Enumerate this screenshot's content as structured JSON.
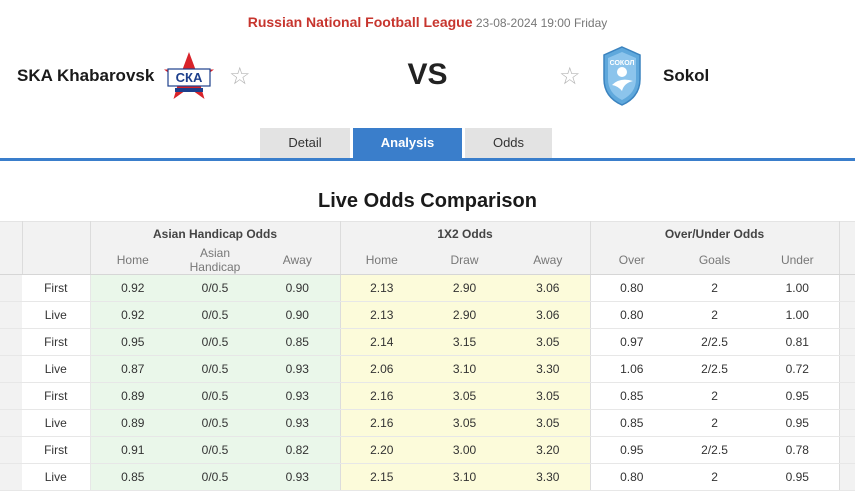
{
  "header": {
    "league": "Russian National Football League",
    "datetime": "23-08-2024 19:00 Friday",
    "home_team": "SKA Khabarovsk",
    "away_team": "Sokol",
    "vs": "VS",
    "home_logo_text": "СКА",
    "away_logo_text": "СОКОЛ"
  },
  "tabs": [
    {
      "label": "Detail",
      "active": false
    },
    {
      "label": "Analysis",
      "active": true
    },
    {
      "label": "Odds",
      "active": false
    }
  ],
  "section_title": "Live Odds Comparison",
  "table": {
    "groups": [
      "Asian Handicap Odds",
      "1X2 Odds",
      "Over/Under Odds"
    ],
    "subheaders": [
      "Home",
      "Asian Handicap",
      "Away",
      "Home",
      "Draw",
      "Away",
      "Over",
      "Goals",
      "Under"
    ],
    "rows": [
      {
        "label": "First",
        "ah": [
          "0.92",
          "0/0.5",
          "0.90"
        ],
        "x12": [
          "2.13",
          "2.90",
          "3.06"
        ],
        "ou": [
          "0.80",
          "2",
          "1.00"
        ]
      },
      {
        "label": "Live",
        "ah": [
          "0.92",
          "0/0.5",
          "0.90"
        ],
        "x12": [
          "2.13",
          "2.90",
          "3.06"
        ],
        "ou": [
          "0.80",
          "2",
          "1.00"
        ]
      },
      {
        "label": "First",
        "ah": [
          "0.95",
          "0/0.5",
          "0.85"
        ],
        "x12": [
          "2.14",
          "3.15",
          "3.05"
        ],
        "ou": [
          "0.97",
          "2/2.5",
          "0.81"
        ]
      },
      {
        "label": "Live",
        "ah": [
          "0.87",
          "0/0.5",
          "0.93"
        ],
        "x12": [
          "2.06",
          "3.10",
          "3.30"
        ],
        "ou": [
          "1.06",
          "2/2.5",
          "0.72"
        ]
      },
      {
        "label": "First",
        "ah": [
          "0.89",
          "0/0.5",
          "0.93"
        ],
        "x12": [
          "2.16",
          "3.05",
          "3.05"
        ],
        "ou": [
          "0.85",
          "2",
          "0.95"
        ]
      },
      {
        "label": "Live",
        "ah": [
          "0.89",
          "0/0.5",
          "0.93"
        ],
        "x12": [
          "2.16",
          "3.05",
          "3.05"
        ],
        "ou": [
          "0.85",
          "2",
          "0.95"
        ]
      },
      {
        "label": "First",
        "ah": [
          "0.91",
          "0/0.5",
          "0.82"
        ],
        "x12": [
          "2.20",
          "3.00",
          "3.20"
        ],
        "ou": [
          "0.95",
          "2/2.5",
          "0.78"
        ]
      },
      {
        "label": "Live",
        "ah": [
          "0.85",
          "0/0.5",
          "0.93"
        ],
        "x12": [
          "2.15",
          "3.10",
          "3.30"
        ],
        "ou": [
          "0.80",
          "2",
          "0.95"
        ]
      }
    ]
  },
  "colors": {
    "league": "#c7352e",
    "accent": "#3a7ecb",
    "asian_handicap_bg": "#eaf7ea",
    "x12_bg": "#fcfbda"
  },
  "icons": {
    "favorite": "star-outline-icon"
  }
}
